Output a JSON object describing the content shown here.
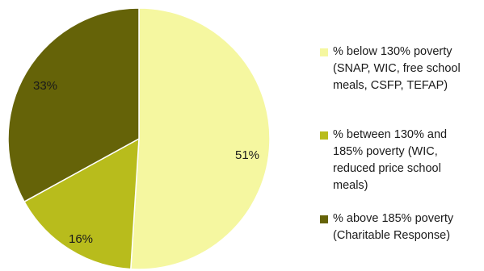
{
  "chart_data": {
    "type": "pie",
    "slices": [
      {
        "name": "% below 130% poverty\n(SNAP, WIC, free school\nmeals, CSFP, TEFAP)",
        "value": 51,
        "label": "51%",
        "color": "#f5f7a0"
      },
      {
        "name": "% between 130% and\n185% poverty (WIC,\nreduced price school\nmeals)",
        "value": 16,
        "label": "16%",
        "color": "#b8bc1c"
      },
      {
        "name": "% above 185% poverty\n(Charitable Response)",
        "value": 33,
        "label": "33%",
        "color": "#656308"
      }
    ],
    "start_angle_deg": 0,
    "direction": "clockwise",
    "legend_position": "right"
  }
}
